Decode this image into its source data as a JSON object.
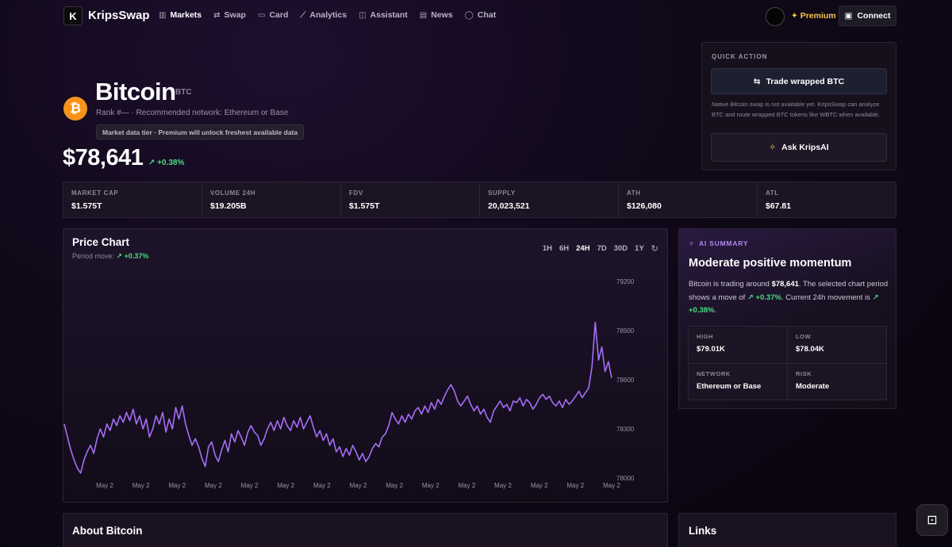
{
  "nav": {
    "logo_letter": "K",
    "brand": "KripsSwap",
    "items": [
      {
        "label": "Markets",
        "icon": "bar-chart-icon",
        "glyph": "▥"
      },
      {
        "label": "Swap",
        "icon": "swap-icon",
        "glyph": "⇄"
      },
      {
        "label": "Card",
        "icon": "card-icon",
        "glyph": "▭"
      },
      {
        "label": "Analytics",
        "icon": "analytics-icon",
        "glyph": "⟋"
      },
      {
        "label": "Assistant",
        "icon": "robot-icon",
        "glyph": "◫"
      },
      {
        "label": "News",
        "icon": "news-icon",
        "glyph": "▤"
      },
      {
        "label": "Chat",
        "icon": "chat-icon",
        "glyph": "◯"
      }
    ],
    "premium": "✦ Premium",
    "connect": "Connect"
  },
  "coin": {
    "logo_glyph": "₿",
    "name": "Bitcoin",
    "symbol": "BTC",
    "subtitle": "Rank #— · Recommended network: Ethereum or Base",
    "tier_badge": "Market data tier · Premium will unlock freshest available data",
    "price": "$78,641",
    "change": "↗ +0.38%"
  },
  "quick_action": {
    "title": "QUICK ACTION",
    "trade": "Trade wrapped BTC",
    "note": "Native Bitcoin swap is not available yet. KripsSwap can analyze BTC and route wrapped BTC tokens like WBTC when available.",
    "ask": "Ask KripsAI"
  },
  "stats": [
    {
      "label": "MARKET CAP",
      "value": "$1.575T"
    },
    {
      "label": "VOLUME 24H",
      "value": "$19.205B"
    },
    {
      "label": "FDV",
      "value": "$1.575T"
    },
    {
      "label": "SUPPLY",
      "value": "20,023,521"
    },
    {
      "label": "ATH",
      "value": "$126,080"
    },
    {
      "label": "ATL",
      "value": "$67.81"
    }
  ],
  "chart_panel": {
    "title": "Price Chart",
    "period_label": "Period move:",
    "period_value": "↗ +0.37%",
    "ranges": [
      "1H",
      "6H",
      "24H",
      "7D",
      "30D",
      "1Y"
    ],
    "active_range": "24H"
  },
  "chart_data": {
    "type": "line",
    "title": "",
    "xlabel": "",
    "ylabel": "",
    "ylim": [
      78000,
      79200
    ],
    "y_ticks": [
      79200,
      78900,
      78600,
      78300,
      78000
    ],
    "x_tick_labels": [
      "May 2",
      "May 2",
      "May 2",
      "May 2",
      "May 2",
      "May 2",
      "May 2",
      "May 2",
      "May 2",
      "May 2",
      "May 2",
      "May 2",
      "May 2",
      "May 2",
      "May 2"
    ],
    "grid": false,
    "series": [
      {
        "color": "#a66ef7",
        "values": [
          78330,
          78250,
          78170,
          78110,
          78060,
          78030,
          78110,
          78160,
          78200,
          78150,
          78240,
          78300,
          78250,
          78330,
          78290,
          78360,
          78320,
          78380,
          78340,
          78400,
          78350,
          78420,
          78330,
          78380,
          78300,
          78360,
          78250,
          78300,
          78380,
          78330,
          78400,
          78280,
          78360,
          78300,
          78430,
          78360,
          78440,
          78330,
          78260,
          78200,
          78240,
          78190,
          78120,
          78070,
          78190,
          78220,
          78140,
          78100,
          78170,
          78230,
          78160,
          78270,
          78220,
          78290,
          78250,
          78200,
          78280,
          78320,
          78280,
          78260,
          78200,
          78240,
          78300,
          78340,
          78290,
          78350,
          78300,
          78370,
          78320,
          78290,
          78350,
          78310,
          78370,
          78300,
          78340,
          78380,
          78310,
          78250,
          78290,
          78230,
          78270,
          78200,
          78240,
          78160,
          78190,
          78130,
          78180,
          78140,
          78200,
          78160,
          78110,
          78150,
          78100,
          78130,
          78180,
          78210,
          78190,
          78250,
          78270,
          78320,
          78400,
          78360,
          78330,
          78380,
          78340,
          78390,
          78360,
          78410,
          78430,
          78390,
          78440,
          78400,
          78460,
          78420,
          78480,
          78450,
          78500,
          78540,
          78570,
          78530,
          78470,
          78440,
          78470,
          78500,
          78450,
          78410,
          78440,
          78390,
          78420,
          78370,
          78340,
          78410,
          78440,
          78470,
          78430,
          78450,
          78410,
          78470,
          78460,
          78490,
          78440,
          78480,
          78460,
          78420,
          78450,
          78490,
          78510,
          78480,
          78500,
          78460,
          78440,
          78470,
          78430,
          78480,
          78450,
          78470,
          78500,
          78530,
          78490,
          78520,
          78550,
          78680,
          78950,
          78720,
          78800,
          78650,
          78710,
          78610
        ]
      }
    ]
  },
  "ai_summary": {
    "tag": "AI SUMMARY",
    "title": "Moderate positive momentum",
    "text_1": "Bitcoin is trading around ",
    "text_price": "$78,641",
    "text_2": ". The selected chart period shows a move of ",
    "text_period": "↗ +0.37%",
    "text_3": ". Current 24h movement is ",
    "text_24h": "↗ +0.38%",
    "text_4": ".",
    "cells": [
      {
        "label": "HIGH",
        "value": "$79.01K"
      },
      {
        "label": "LOW",
        "value": "$78.04K"
      },
      {
        "label": "NETWORK",
        "value": "Ethereum or Base"
      },
      {
        "label": "RISK",
        "value": "Moderate"
      }
    ]
  },
  "about": {
    "title": "About Bitcoin"
  },
  "links": {
    "title": "Links"
  },
  "colors": {
    "accent": "#a66ef7",
    "positive": "#4ade80",
    "premium": "#f5c84c",
    "bitcoin": "#f7931a"
  }
}
